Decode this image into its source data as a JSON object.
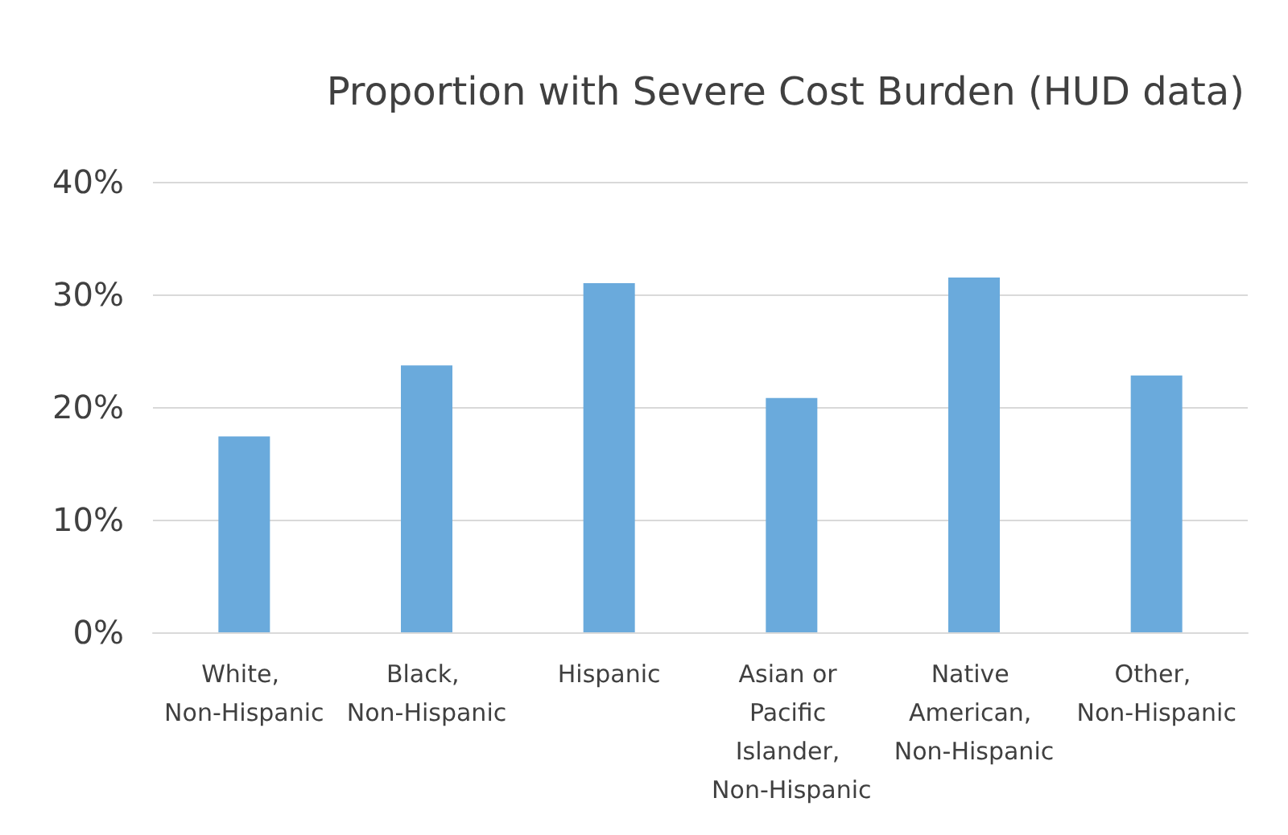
{
  "chart_data": {
    "type": "bar",
    "title": "Proportion with Severe Cost Burden (HUD data)",
    "categories": [
      "White, Non-Hispanic",
      "Black, Non-Hispanic",
      "Hispanic",
      "Asian or Pacific Islander, Non-Hispanic",
      "Native American, Non-Hispanic",
      "Other, Non-Hispanic"
    ],
    "values": [
      17.4,
      23.7,
      31.0,
      20.8,
      31.5,
      22.8
    ],
    "color": "#6aaadc",
    "ylim": [
      0,
      40
    ],
    "yticks": [
      {
        "value": 0,
        "label": "0%"
      },
      {
        "value": 10,
        "label": "10%"
      },
      {
        "value": 20,
        "label": "20%"
      },
      {
        "value": 30,
        "label": "30%"
      },
      {
        "value": 40,
        "label": "40%"
      }
    ],
    "grid": "y"
  }
}
